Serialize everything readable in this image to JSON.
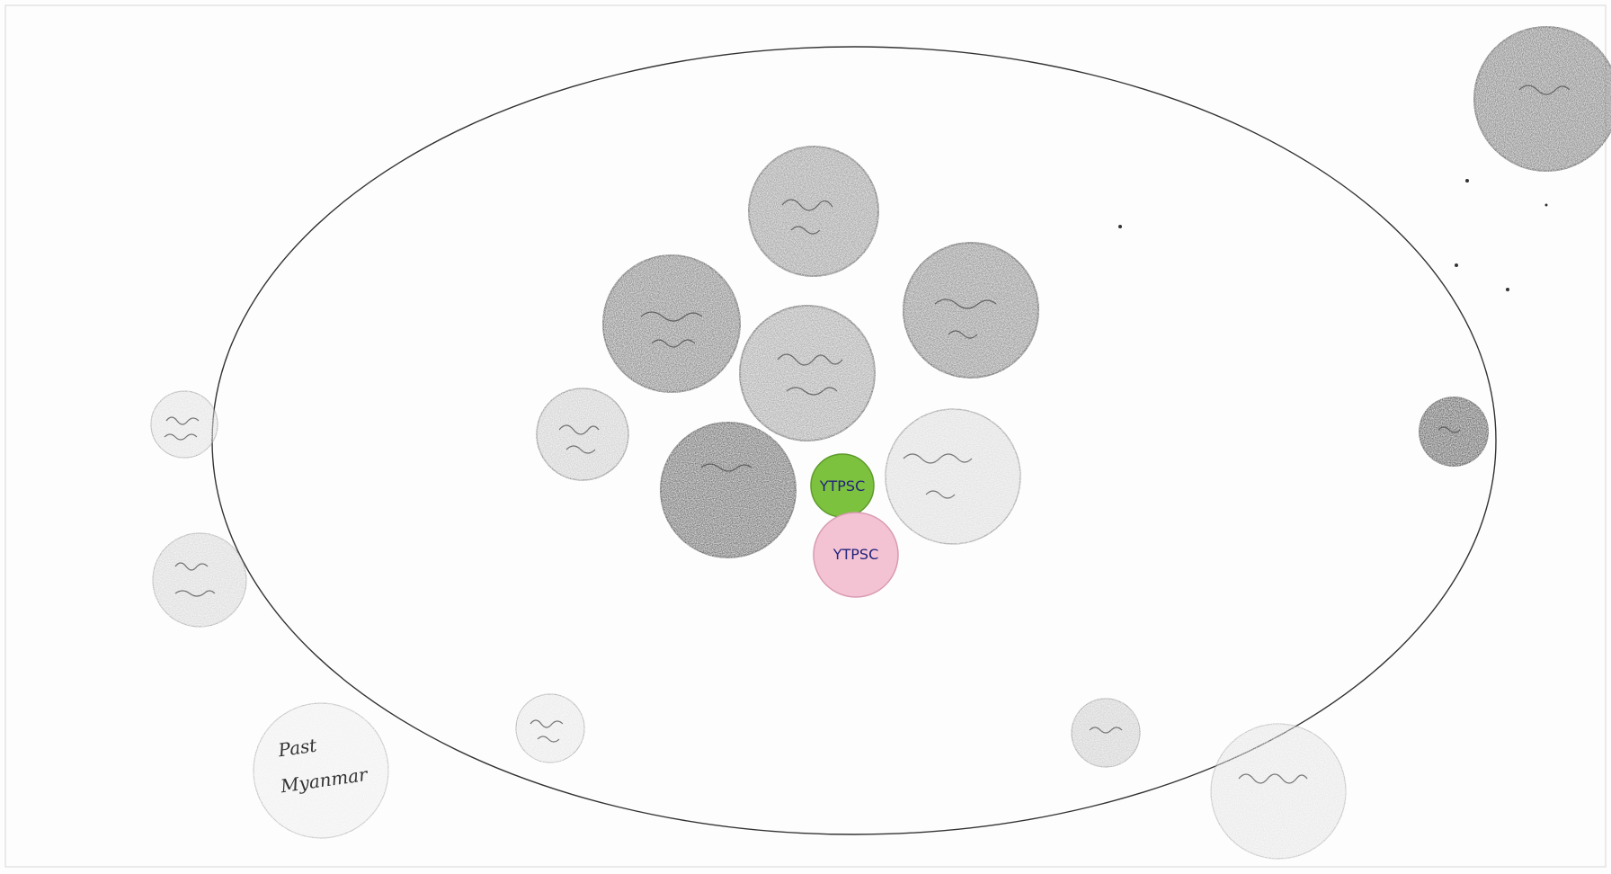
{
  "diagram": {
    "labels": {
      "past_myanmar": "Past Myanmar",
      "ytpsc": "YTPSC",
      "ytpsc_partial": "YTPSC"
    },
    "colors": {
      "green_circle": "#7cc23f",
      "pink_circle": "#f3c3d4",
      "dark_circle": "#5b5b5b",
      "mid_circle": "#8a8a8a",
      "light_circle": "#d6d6d6"
    }
  }
}
